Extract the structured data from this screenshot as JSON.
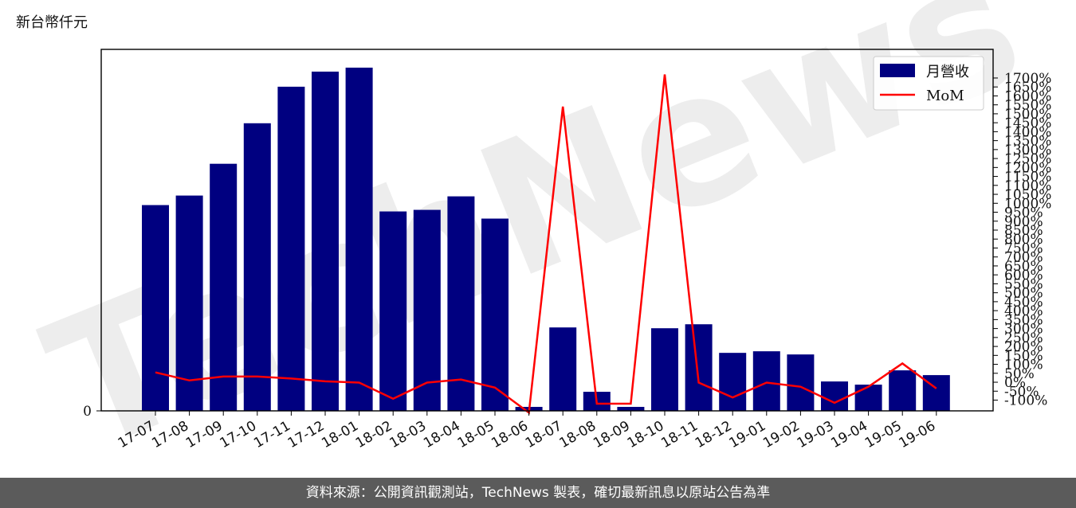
{
  "unit_label": "新台幣仟元",
  "footer": "資料來源：公開資訊觀測站，TechNews 製表，確切最新訊息以原站公告為準",
  "watermark": "TechNews",
  "colors": {
    "bar": "#000080",
    "line": "#ff0000",
    "footer_bg": "#5b5b5b"
  },
  "chart_data": {
    "type": "bar",
    "categories": [
      "17-07",
      "17-08",
      "17-09",
      "17-10",
      "17-11",
      "17-12",
      "18-01",
      "18-02",
      "18-03",
      "18-04",
      "18-05",
      "18-06",
      "18-07",
      "18-08",
      "18-09",
      "18-10",
      "18-11",
      "18-12",
      "19-01",
      "19-02",
      "19-03",
      "19-04",
      "19-05",
      "19-06"
    ],
    "series": [
      {
        "name": "月營收",
        "type": "bar",
        "axis": "left",
        "values": [
          2590,
          2710,
          3110,
          3620,
          4080,
          4270,
          4320,
          2510,
          2530,
          2700,
          2420,
          50,
          1050,
          240,
          50,
          1040,
          1090,
          730,
          750,
          710,
          370,
          330,
          510,
          450
        ]
      },
      {
        "name": "MoM",
        "type": "line",
        "axis": "right",
        "values": [
          55,
          10,
          32,
          32,
          21,
          5,
          -2,
          -92,
          -2,
          15,
          -30,
          -170,
          1540,
          -120,
          -120,
          1720,
          -2,
          -85,
          -2,
          -25,
          -115,
          -25,
          105,
          -35
        ]
      }
    ],
    "y_left": {
      "ticks": [
        "0"
      ],
      "min": 0,
      "max": 4550
    },
    "y_right": {
      "min": -160,
      "max": 1860,
      "tick_start": -100,
      "tick_end": 1700,
      "tick_step": 50,
      "suffix": "%"
    },
    "legend": {
      "position": "top-right",
      "entries": [
        "月營收",
        "MoM"
      ]
    },
    "grid": false
  }
}
